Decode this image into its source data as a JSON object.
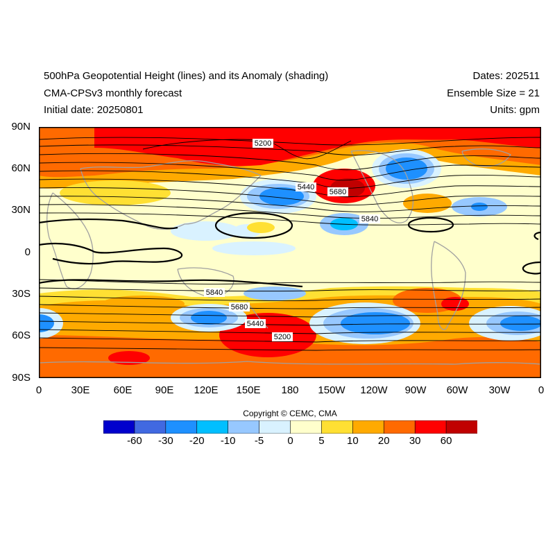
{
  "header": {
    "title": "500hPa Geopotential Height (lines) and its Anomaly (shading)",
    "subtitle": "CMA-CPSv3 monthly forecast",
    "initial_date": "Initial date: 20250801",
    "dates": "Dates: 202511",
    "ensemble": "Ensemble Size = 21",
    "units": "Units: gpm"
  },
  "axes": {
    "y_ticks": [
      "90N",
      "60N",
      "30N",
      "0",
      "30S",
      "60S",
      "90S"
    ],
    "x_ticks": [
      "0",
      "30E",
      "60E",
      "90E",
      "120E",
      "150E",
      "180",
      "150W",
      "120W",
      "90W",
      "60W",
      "30W",
      "0"
    ]
  },
  "contour_labels": [
    "5200",
    "5440",
    "5680",
    "5840",
    "5840",
    "5680",
    "5440",
    "5200"
  ],
  "copyright": "Copyright © CEMC, CMA",
  "colorbar": {
    "labels": [
      "-60",
      "-30",
      "-20",
      "-10",
      "-5",
      "0",
      "5",
      "10",
      "20",
      "30",
      "60"
    ],
    "colors": [
      "#0000cd",
      "#4169e1",
      "#1e90ff",
      "#00bfff",
      "#97c8ff",
      "#d9f2ff",
      "#ffffcc",
      "#ffe033",
      "#ffaa00",
      "#ff6a00",
      "#ff0000",
      "#c00000"
    ]
  }
}
